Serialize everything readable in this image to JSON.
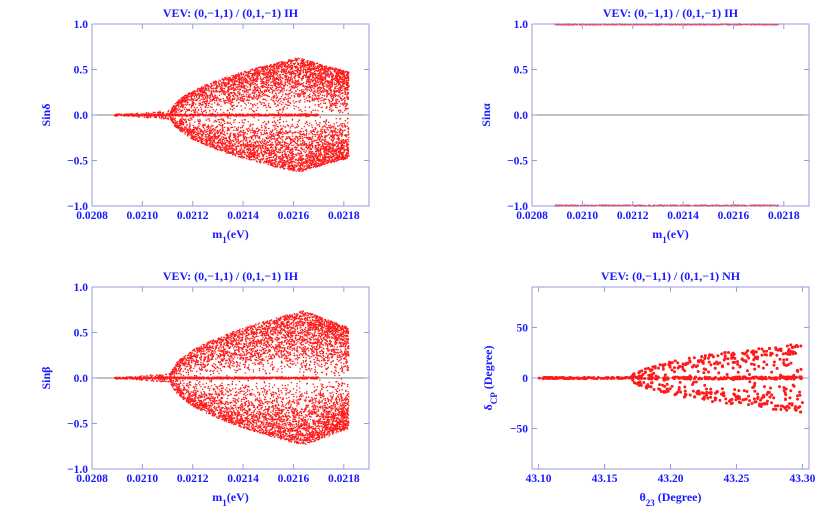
{
  "figure": {
    "background": "#ffffff",
    "axis_color": "#1a1aff",
    "point_color": "#ff1a1a",
    "frame_color": "#9a9ae6",
    "zero_line_color": "#555555"
  },
  "chart_data": [
    {
      "id": "p1",
      "type": "scatter",
      "title": "VEV: (0,−1,1) / (0,1,−1) IH",
      "xlabel": "m1(eV)",
      "xlabel_main": "m",
      "xlabel_sub": "1",
      "xlabel_rest": "(eV)",
      "ylabel": "Sinδ",
      "xlim": [
        0.0208,
        0.0219
      ],
      "ylim": [
        -1.0,
        1.0
      ],
      "xticks": [
        0.0208,
        0.021,
        0.0212,
        0.0214,
        0.0216,
        0.0218
      ],
      "xtick_labels": [
        "0.0208",
        "0.0210",
        "0.0212",
        "0.0214",
        "0.0216",
        "0.0218"
      ],
      "yticks": [
        -1.0,
        -0.5,
        0.0,
        0.5,
        1.0
      ],
      "ytick_labels": [
        "−1.0",
        "−0.5",
        "0.0",
        "0.5",
        "1.0"
      ],
      "zero_line": true,
      "distribution": {
        "kind": "fan",
        "x_start": 0.02089,
        "x_flat_end": 0.02111,
        "x_peak": 0.02162,
        "x_end": 0.02182,
        "band_amplitude": 0.63,
        "central_band_x": [
          0.02089,
          0.0217
        ],
        "count": 6500,
        "seed": 11
      }
    },
    {
      "id": "p2",
      "type": "scatter",
      "title": "VEV: (0,−1,1) / (0,1,−1) IH",
      "xlabel": "m1(eV)",
      "xlabel_main": "m",
      "xlabel_sub": "1",
      "xlabel_rest": "(eV)",
      "ylabel": "Sinα",
      "xlim": [
        0.0208,
        0.0219
      ],
      "ylim": [
        -1.0,
        1.0
      ],
      "xticks": [
        0.0208,
        0.021,
        0.0212,
        0.0214,
        0.0216,
        0.0218
      ],
      "xtick_labels": [
        "0.0208",
        "0.0210",
        "0.0212",
        "0.0214",
        "0.0216",
        "0.0218"
      ],
      "yticks": [
        -1.0,
        -0.5,
        0.0,
        0.5,
        1.0
      ],
      "ytick_labels": [
        "−1.0",
        "−0.5",
        "0.0",
        "0.5",
        "1.0"
      ],
      "zero_line": true,
      "distribution": {
        "kind": "lines",
        "levels": [
          1.0,
          -1.0
        ],
        "x_start": 0.02089,
        "x_end": 0.02178,
        "count": 700,
        "seed": 23
      }
    },
    {
      "id": "p3",
      "type": "scatter",
      "title": "VEV: (0,−1,1) / (0,1,−1) IH",
      "xlabel": "m1(eV)",
      "xlabel_main": "m",
      "xlabel_sub": "1",
      "xlabel_rest": "(eV)",
      "ylabel": "Sinβ",
      "xlim": [
        0.0208,
        0.0219
      ],
      "ylim": [
        -1.0,
        1.0
      ],
      "xticks": [
        0.0208,
        0.021,
        0.0212,
        0.0214,
        0.0216,
        0.0218
      ],
      "xtick_labels": [
        "0.0208",
        "0.0210",
        "0.0212",
        "0.0214",
        "0.0216",
        "0.0218"
      ],
      "yticks": [
        -1.0,
        -0.5,
        0.0,
        0.5,
        1.0
      ],
      "ytick_labels": [
        "−1.0",
        "−0.5",
        "0.0",
        "0.5",
        "1.0"
      ],
      "zero_line": true,
      "distribution": {
        "kind": "fan",
        "x_start": 0.02089,
        "x_flat_end": 0.02111,
        "x_peak": 0.02164,
        "x_end": 0.02182,
        "band_amplitude": 0.74,
        "central_band_x": [
          0.02089,
          0.0217
        ],
        "count": 6500,
        "seed": 37
      }
    },
    {
      "id": "p4",
      "type": "scatter",
      "title": "VEV: (0,−1,1) / (0,1,−1) NH",
      "xlabel": "θ23 (Degree)",
      "xlabel_main": "θ",
      "xlabel_sub": "23",
      "xlabel_rest": " (Degree)",
      "ylabel": "δCP (Degree)",
      "ylabel_main": "δ",
      "ylabel_sub": "CP",
      "ylabel_rest": " (Degree)",
      "xlim": [
        43.095,
        43.305
      ],
      "ylim": [
        -90,
        90
      ],
      "xticks": [
        43.1,
        43.15,
        43.2,
        43.25,
        43.3
      ],
      "xtick_labels": [
        "43.10",
        "43.15",
        "43.20",
        "43.25",
        "43.30"
      ],
      "yticks": [
        -50,
        0,
        50
      ],
      "ytick_labels": [
        "−50",
        "0",
        "50"
      ],
      "zero_line": true,
      "distribution": {
        "kind": "cone",
        "x_start": 43.1,
        "x_flat_end": 43.17,
        "x_end": 43.3,
        "cone_max": 34,
        "count": 600,
        "seed": 53
      }
    }
  ]
}
